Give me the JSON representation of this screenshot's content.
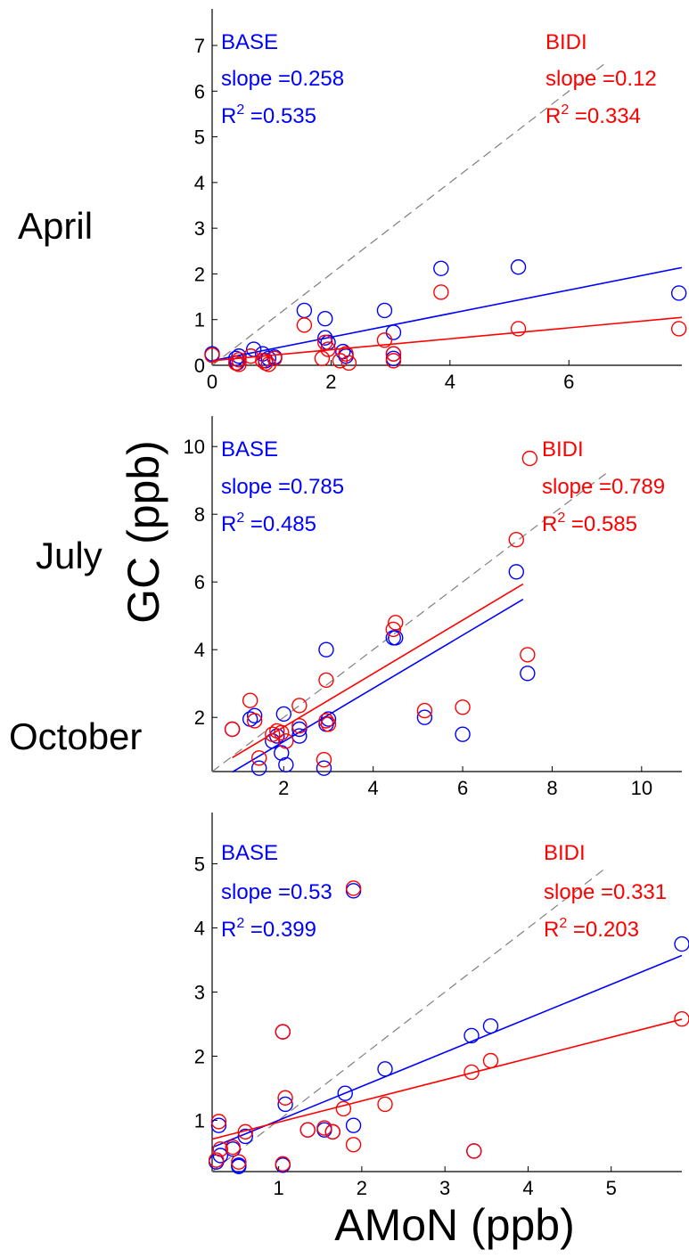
{
  "figure": {
    "xlabel": "AMoN (ppb)",
    "ylabel": "GC (ppb)"
  },
  "colors": {
    "base": "#0000ff",
    "bidi": "#ff0000",
    "axis": "#000000",
    "one_to_one": "#808080"
  },
  "chart_data": [
    {
      "type": "scatter",
      "row_label": "April",
      "xlim": [
        0,
        7.9
      ],
      "ylim": [
        0,
        7.8
      ],
      "xticks": [
        0,
        2,
        4,
        6
      ],
      "yticks": [
        0,
        1,
        2,
        3,
        4,
        5,
        6,
        7
      ],
      "one_to_one_line": true,
      "series": [
        {
          "name": "BASE",
          "slope": "0.258",
          "r2": "0.535",
          "intercept": 0.1,
          "points": [
            [
              0,
              0.25
            ],
            [
              0.4,
              0.15
            ],
            [
              0.42,
              0.05
            ],
            [
              0.45,
              0.2
            ],
            [
              0.7,
              0.35
            ],
            [
              0.85,
              0.25
            ],
            [
              0.9,
              0.1
            ],
            [
              0.95,
              0.15
            ],
            [
              1.05,
              0.18
            ],
            [
              1.55,
              1.2
            ],
            [
              1.9,
              1.02
            ],
            [
              1.9,
              0.6
            ],
            [
              1.95,
              0.5
            ],
            [
              2.2,
              0.3
            ],
            [
              2.25,
              0.2
            ],
            [
              2.9,
              1.2
            ],
            [
              3.05,
              0.72
            ],
            [
              3.05,
              0.25
            ],
            [
              3.05,
              0.15
            ],
            [
              3.85,
              2.12
            ],
            [
              5.15,
              2.15
            ],
            [
              7.85,
              1.58
            ]
          ]
        },
        {
          "name": "BIDI",
          "slope": "0.12",
          "r2": "0.334",
          "intercept": 0.1,
          "points": [
            [
              0,
              0.22
            ],
            [
              0.4,
              0.05
            ],
            [
              0.45,
              0.02
            ],
            [
              0.45,
              0.12
            ],
            [
              0.65,
              0.2
            ],
            [
              0.85,
              0.1
            ],
            [
              0.9,
              0.05
            ],
            [
              0.95,
              0.02
            ],
            [
              1.05,
              0.15
            ],
            [
              1.55,
              0.88
            ],
            [
              1.85,
              0.15
            ],
            [
              1.9,
              0.5
            ],
            [
              1.95,
              0.35
            ],
            [
              2.15,
              0.1
            ],
            [
              2.25,
              0.25
            ],
            [
              2.3,
              0.05
            ],
            [
              2.9,
              0.55
            ],
            [
              3.05,
              0.1
            ],
            [
              3.05,
              0.25
            ],
            [
              3.85,
              1.6
            ],
            [
              5.15,
              0.8
            ],
            [
              7.85,
              0.8
            ]
          ]
        }
      ]
    },
    {
      "type": "scatter",
      "row_label": "July",
      "xlim": [
        0.4,
        10.9
      ],
      "ylim": [
        0.4,
        10.9
      ],
      "xticks": [
        2,
        4,
        6,
        8,
        10
      ],
      "yticks": [
        2,
        4,
        6,
        8,
        10
      ],
      "one_to_one_line": true,
      "series": [
        {
          "name": "BASE",
          "slope": "0.785",
          "r2": "0.485",
          "line_x": [
            0.85,
            7.35
          ],
          "points": [
            [
              0.85,
              1.65
            ],
            [
              1.25,
              1.95
            ],
            [
              1.35,
              2.05
            ],
            [
              1.45,
              0.5
            ],
            [
              1.75,
              1.3
            ],
            [
              1.85,
              1.45
            ],
            [
              1.95,
              0.95
            ],
            [
              2.0,
              2.1
            ],
            [
              2.05,
              0.6
            ],
            [
              2.35,
              1.45
            ],
            [
              2.35,
              1.65
            ],
            [
              2.9,
              0.5
            ],
            [
              2.95,
              4.0
            ],
            [
              2.95,
              1.8
            ],
            [
              3.0,
              1.95
            ],
            [
              4.45,
              4.35
            ],
            [
              4.5,
              4.35
            ],
            [
              5.15,
              2.0
            ],
            [
              6.0,
              1.5
            ],
            [
              7.2,
              6.3
            ],
            [
              7.45,
              3.3
            ]
          ]
        },
        {
          "name": "BIDI",
          "slope": "0.789",
          "r2": "0.585",
          "line_x": [
            0.85,
            7.35
          ],
          "points": [
            [
              0.85,
              1.65
            ],
            [
              1.25,
              2.5
            ],
            [
              1.35,
              1.9
            ],
            [
              1.45,
              0.8
            ],
            [
              1.75,
              1.5
            ],
            [
              1.85,
              1.6
            ],
            [
              1.95,
              1.55
            ],
            [
              2.05,
              1.3
            ],
            [
              2.35,
              2.35
            ],
            [
              2.35,
              1.75
            ],
            [
              2.9,
              0.75
            ],
            [
              2.95,
              3.1
            ],
            [
              2.95,
              1.9
            ],
            [
              3.0,
              1.8
            ],
            [
              4.45,
              4.6
            ],
            [
              4.5,
              4.8
            ],
            [
              5.15,
              2.2
            ],
            [
              6.0,
              2.3
            ],
            [
              7.2,
              7.25
            ],
            [
              7.45,
              3.85
            ],
            [
              7.5,
              9.65
            ]
          ]
        }
      ]
    },
    {
      "type": "scatter",
      "row_label": "October",
      "xlim": [
        0.2,
        5.85
      ],
      "ylim": [
        0.2,
        5.8
      ],
      "xticks": [
        1,
        2,
        3,
        4,
        5
      ],
      "yticks": [
        1,
        2,
        3,
        4,
        5
      ],
      "one_to_one_line": true,
      "series": [
        {
          "name": "BASE",
          "slope": "0.53",
          "r2": "0.399",
          "intercept": 0.47,
          "points": [
            [
              0.25,
              0.35
            ],
            [
              0.28,
              0.92
            ],
            [
              0.3,
              0.45
            ],
            [
              0.45,
              0.55
            ],
            [
              0.52,
              0.3
            ],
            [
              0.52,
              0.28
            ],
            [
              0.6,
              0.75
            ],
            [
              1.05,
              0.3
            ],
            [
              1.05,
              2.38
            ],
            [
              1.08,
              1.25
            ],
            [
              1.35,
              0.85
            ],
            [
              1.55,
              0.85
            ],
            [
              1.65,
              0.82
            ],
            [
              1.8,
              1.42
            ],
            [
              1.9,
              0.92
            ],
            [
              1.9,
              4.58
            ],
            [
              2.28,
              1.8
            ],
            [
              3.32,
              2.32
            ],
            [
              3.35,
              0.52
            ],
            [
              3.55,
              2.47
            ],
            [
              5.85,
              3.75
            ]
          ]
        },
        {
          "name": "BIDI",
          "slope": "0.331",
          "r2": "0.203",
          "intercept": 0.64,
          "points": [
            [
              0.25,
              0.38
            ],
            [
              0.28,
              0.98
            ],
            [
              0.3,
              0.55
            ],
            [
              0.45,
              0.58
            ],
            [
              0.52,
              0.35
            ],
            [
              0.6,
              0.82
            ],
            [
              1.05,
              0.32
            ],
            [
              1.05,
              2.38
            ],
            [
              1.08,
              1.35
            ],
            [
              1.35,
              0.85
            ],
            [
              1.55,
              0.88
            ],
            [
              1.65,
              0.82
            ],
            [
              1.78,
              1.18
            ],
            [
              1.9,
              0.62
            ],
            [
              1.9,
              4.62
            ],
            [
              2.28,
              1.25
            ],
            [
              3.32,
              1.75
            ],
            [
              3.35,
              0.52
            ],
            [
              3.55,
              1.93
            ],
            [
              5.85,
              2.58
            ]
          ]
        }
      ]
    }
  ]
}
